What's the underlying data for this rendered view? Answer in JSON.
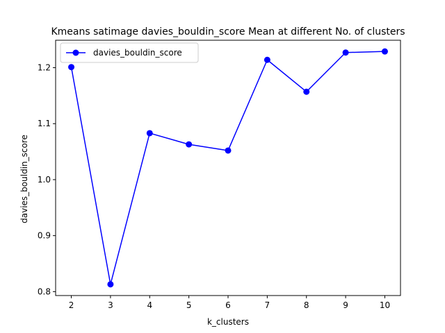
{
  "chart_data": {
    "type": "line",
    "title": "Kmeans satimage davies_bouldin_score Mean at different No. of clusters",
    "xlabel": "k_clusters",
    "ylabel": "davies_bouldin_score",
    "x": [
      2,
      3,
      4,
      5,
      6,
      7,
      8,
      9,
      10
    ],
    "series": [
      {
        "name": "davies_bouldin_score",
        "values": [
          1.201,
          0.813,
          1.083,
          1.063,
          1.052,
          1.214,
          1.157,
          1.227,
          1.229
        ],
        "color": "#0000ff",
        "marker": "circle"
      }
    ],
    "xlim": [
      1.6,
      10.4
    ],
    "ylim": [
      0.793,
      1.249
    ],
    "xticks": [
      2,
      3,
      4,
      5,
      6,
      7,
      8,
      9,
      10
    ],
    "yticks": [
      0.8,
      0.9,
      1.0,
      1.1,
      1.2
    ],
    "ytick_labels": [
      "0.8",
      "0.9",
      "1.0",
      "1.1",
      "1.2"
    ],
    "grid": false,
    "legend_position": "upper-left"
  }
}
